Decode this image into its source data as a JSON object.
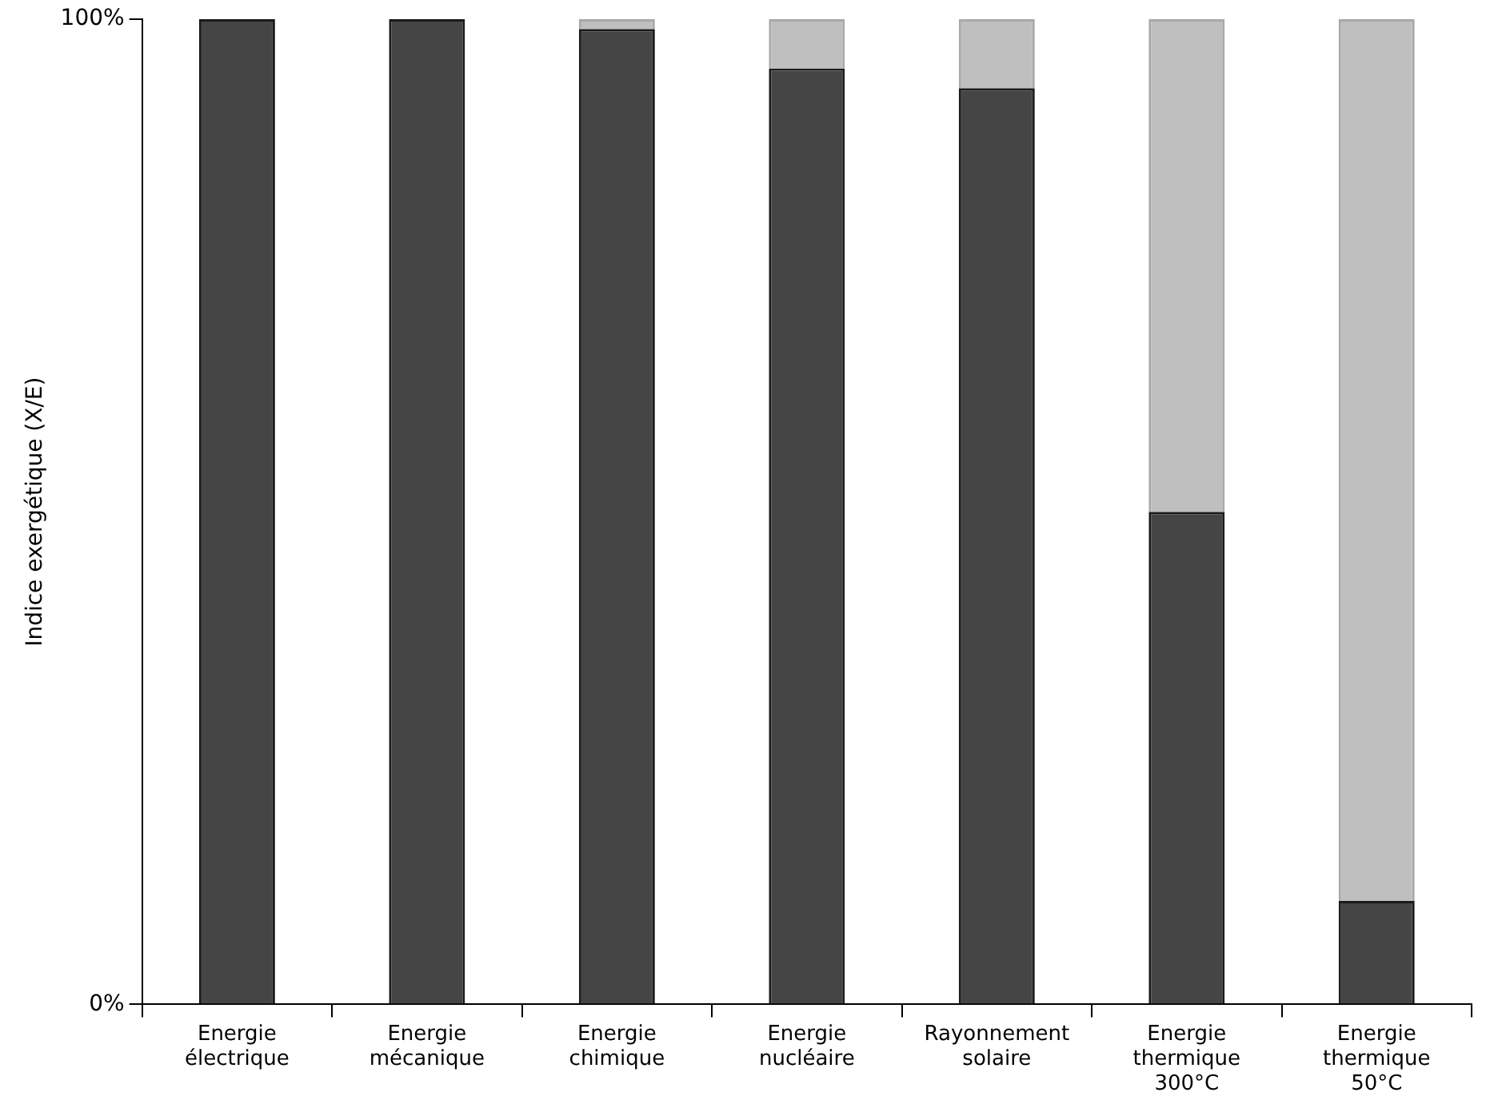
{
  "chart_data": {
    "type": "bar",
    "stacked": true,
    "ylabel": "Indice exergétique (X/E)",
    "categories": [
      "Energie électrique",
      "Energie mécanique",
      "Energie chimique",
      "Energie nucléaire",
      "Rayonnement solaire",
      "Energie thermique 300°C",
      "Energie thermique 50°C"
    ],
    "series": [
      {
        "color": "#454545",
        "values": [
          100,
          100,
          99,
          95,
          93,
          50,
          10.5
        ]
      },
      {
        "color": "#bfbfbf",
        "values": [
          0,
          0,
          1,
          5,
          7,
          50,
          89.5
        ]
      }
    ],
    "ylim": [
      0,
      100
    ],
    "yticks": [
      {
        "value": 0,
        "label": "0%"
      },
      {
        "value": 100,
        "label": "100%"
      }
    ],
    "grid": false,
    "legend": false
  }
}
